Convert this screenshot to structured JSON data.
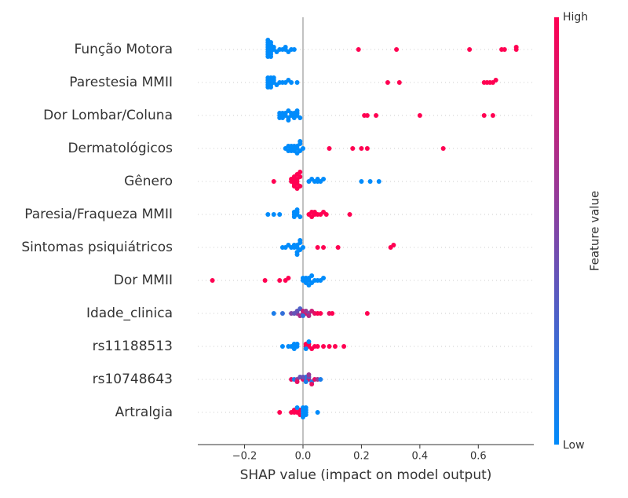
{
  "chart_data": {
    "type": "beeswarm",
    "categories": [
      "Função Motora",
      "Parestesia MMII",
      "Dor Lombar/Coluna",
      "Dermatológicos",
      "Gênero",
      "Paresia/Fraqueza MMII",
      "Sintomas psiquiátricos",
      "Dor MMII",
      "Idade_clinica",
      "rs11188513",
      "rs10748643",
      "Artralgia"
    ],
    "shap_values": [
      [
        -0.12,
        -0.12,
        -0.12,
        -0.11,
        -0.11,
        -0.11,
        -0.11,
        -0.12,
        -0.12,
        -0.1,
        -0.1,
        -0.12,
        -0.11,
        -0.12,
        -0.11,
        -0.09,
        -0.08,
        -0.07,
        -0.06,
        -0.06,
        -0.05,
        -0.04,
        -0.03,
        -0.11,
        -0.12,
        0.19,
        0.32,
        0.57,
        0.68,
        0.69,
        0.73,
        0.73
      ],
      [
        -0.12,
        -0.12,
        -0.11,
        -0.11,
        -0.12,
        -0.11,
        -0.1,
        -0.1,
        -0.12,
        -0.11,
        -0.09,
        -0.08,
        -0.07,
        -0.06,
        -0.05,
        -0.04,
        -0.02,
        -0.12,
        -0.11,
        -0.1,
        0.29,
        0.33,
        0.62,
        0.63,
        0.64,
        0.65,
        0.66
      ],
      [
        -0.08,
        -0.08,
        -0.07,
        -0.07,
        -0.06,
        -0.06,
        -0.05,
        -0.05,
        -0.04,
        -0.04,
        -0.03,
        -0.03,
        -0.02,
        -0.02,
        -0.01,
        -0.08,
        -0.07,
        -0.05,
        -0.03,
        -0.02,
        0.21,
        0.22,
        0.25,
        0.4,
        0.62,
        0.65
      ],
      [
        -0.06,
        -0.05,
        -0.05,
        -0.04,
        -0.04,
        -0.03,
        -0.03,
        -0.02,
        -0.02,
        -0.01,
        -0.01,
        0.0,
        -0.03,
        -0.02,
        -0.01,
        -0.04,
        0.09,
        0.17,
        0.2,
        0.22,
        0.48
      ],
      [
        -0.1,
        -0.04,
        -0.04,
        -0.03,
        -0.03,
        -0.03,
        -0.02,
        -0.02,
        -0.02,
        -0.01,
        -0.01,
        -0.03,
        -0.02,
        -0.03,
        -0.02,
        -0.01,
        0.02,
        0.03,
        0.04,
        0.05,
        0.06,
        0.07,
        0.05,
        0.2,
        0.23,
        0.26
      ],
      [
        -0.12,
        -0.1,
        -0.08,
        -0.03,
        -0.03,
        -0.02,
        -0.02,
        -0.01,
        -0.02,
        -0.03,
        0.02,
        0.03,
        0.03,
        0.04,
        0.05,
        0.06,
        0.07,
        0.08,
        0.04,
        0.16
      ],
      [
        -0.07,
        -0.06,
        -0.05,
        -0.04,
        -0.03,
        -0.02,
        -0.02,
        -0.01,
        -0.01,
        0.0,
        -0.02,
        -0.01,
        -0.03,
        -0.02,
        0.05,
        0.07,
        0.12,
        0.3,
        0.31
      ],
      [
        -0.31,
        -0.13,
        -0.08,
        -0.06,
        -0.05,
        0.0,
        0.01,
        0.01,
        0.02,
        0.02,
        0.03,
        0.03,
        0.04,
        0.05,
        0.06,
        0.07,
        0.01,
        0.02,
        0.0
      ],
      [
        -0.1,
        -0.07,
        -0.04,
        -0.02,
        -0.02,
        -0.01,
        -0.01,
        0.0,
        0.0,
        0.01,
        0.01,
        0.02,
        0.03,
        0.04,
        0.05,
        0.06,
        0.09,
        0.1,
        0.22,
        -0.03,
        0.0,
        0.02
      ],
      [
        -0.07,
        -0.05,
        -0.04,
        -0.03,
        -0.03,
        -0.02,
        -0.02,
        -0.03,
        0.01,
        0.01,
        0.02,
        0.02,
        0.03,
        0.04,
        0.05,
        0.07,
        0.09,
        0.11,
        0.14,
        0.01,
        0.02
      ],
      [
        -0.04,
        -0.03,
        -0.02,
        -0.01,
        0.0,
        0.01,
        0.01,
        0.02,
        0.02,
        0.03,
        0.04,
        0.05,
        0.06,
        -0.02,
        0.0,
        0.01,
        0.02,
        0.03
      ],
      [
        -0.08,
        -0.04,
        -0.03,
        -0.03,
        -0.02,
        -0.01,
        -0.01,
        0.0,
        0.0,
        0.01,
        0.01,
        0.0,
        0.01,
        0.0,
        0.01,
        0.0,
        0.05,
        -0.02
      ]
    ],
    "feature_values": [
      [
        0,
        0,
        0,
        0,
        0,
        0,
        0,
        0,
        0,
        0,
        0,
        0,
        0,
        0,
        0,
        0,
        0,
        0,
        0,
        0,
        0,
        0,
        0,
        0,
        0,
        1,
        1,
        1,
        1,
        1,
        1,
        1
      ],
      [
        0,
        0,
        0,
        0,
        0,
        0,
        0,
        0,
        0,
        0,
        0,
        0,
        0,
        0,
        0,
        0,
        0,
        0,
        0,
        0,
        1,
        1,
        1,
        1,
        1,
        1,
        1
      ],
      [
        0,
        0,
        0,
        0,
        0,
        0,
        0,
        0,
        0,
        0,
        0,
        0,
        0,
        0,
        0,
        0,
        0,
        0,
        0,
        0,
        1,
        1,
        1,
        1,
        1,
        1
      ],
      [
        0,
        0,
        0,
        0,
        0,
        0,
        0,
        0,
        0,
        0,
        0,
        0,
        0,
        0,
        0,
        0,
        1,
        1,
        1,
        1,
        1
      ],
      [
        1,
        1,
        1,
        1,
        1,
        1,
        1,
        1,
        1,
        1,
        1,
        1,
        1,
        1,
        1,
        1,
        0,
        0,
        0,
        0,
        0,
        0,
        0,
        0,
        0,
        0
      ],
      [
        0,
        0,
        0,
        0,
        0,
        0,
        0,
        0,
        0,
        0,
        1,
        1,
        1,
        1,
        1,
        1,
        1,
        1,
        1,
        1
      ],
      [
        0,
        0,
        0,
        0,
        0,
        0,
        0,
        0,
        0,
        0,
        0,
        0,
        0,
        0,
        1,
        1,
        1,
        1,
        1
      ],
      [
        1,
        1,
        1,
        1,
        1,
        0,
        0,
        0,
        0,
        0,
        0,
        0,
        0,
        0,
        0,
        0,
        0,
        0,
        0
      ],
      [
        0.1,
        0.2,
        0.5,
        0.6,
        0.4,
        0.7,
        0.3,
        0.5,
        0.8,
        0.9,
        0.6,
        0.5,
        0.8,
        0.9,
        1,
        1,
        0.9,
        1,
        1,
        0.4,
        0.2,
        0.7
      ],
      [
        0,
        0,
        0,
        0,
        0,
        0,
        0,
        0,
        1,
        1,
        1,
        1,
        1,
        1,
        1,
        1,
        1,
        1,
        1,
        0,
        0
      ],
      [
        0.9,
        0.1,
        0.6,
        0.4,
        0.9,
        0.6,
        0.1,
        0.9,
        0.4,
        0.1,
        0.9,
        0.6,
        0.1,
        0.9,
        0.4,
        0.1,
        0.6,
        0.9
      ],
      [
        1,
        1,
        1,
        1,
        1,
        1,
        1,
        0,
        0,
        0,
        0,
        0,
        0,
        0,
        0,
        0,
        0,
        0
      ]
    ],
    "colormap": [
      "#008bfb",
      "#ff0052"
    ],
    "xlabel": "SHAP value (impact on model output)",
    "xlim": [
      -0.36,
      0.79
    ],
    "xticks": [
      {
        "value": -0.2,
        "label": "−0.2"
      },
      {
        "value": 0,
        "label": "0.0"
      },
      0.2,
      0.4,
      0.6
    ],
    "colorbar_label": "Feature value",
    "colorbar_high": "High",
    "colorbar_low": "Low",
    "grid": true
  }
}
